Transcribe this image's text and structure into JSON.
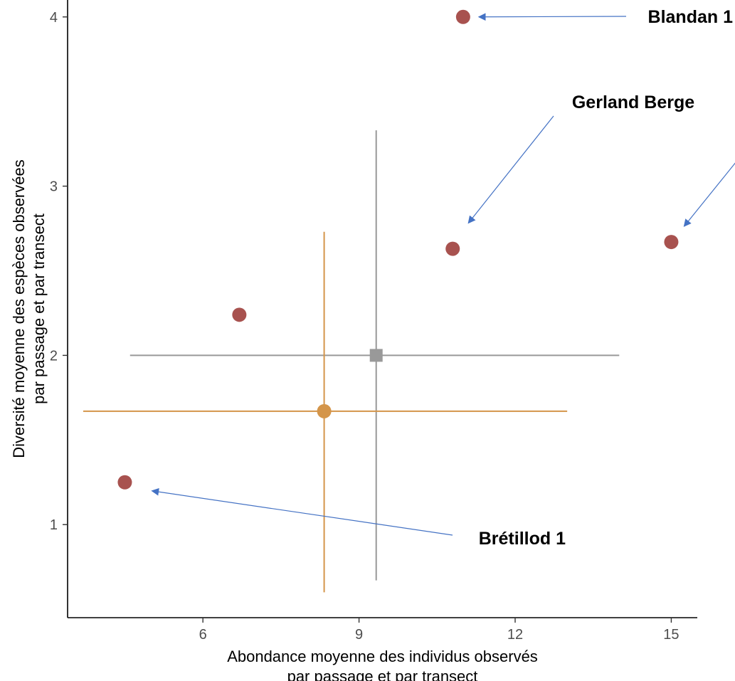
{
  "chart_data": {
    "type": "scatter",
    "xlabel": [
      "Abondance moyenne des individus observés",
      "par passage et par transect"
    ],
    "ylabel": [
      "Diversité moyenne des espèces observées",
      "par passage et par transect"
    ],
    "xlim": [
      3.4,
      15.5
    ],
    "ylim": [
      0.45,
      4.1
    ],
    "x_ticks": [
      6,
      9,
      12,
      15
    ],
    "y_ticks": [
      1,
      2,
      3,
      4
    ],
    "x_tick_labels": [
      "6",
      "9",
      "12",
      "15"
    ],
    "y_tick_labels": [
      "1",
      "2",
      "3",
      "4"
    ],
    "grid": false,
    "series": [
      {
        "color": "#a8524f",
        "marker": "circle",
        "points": [
          {
            "x": 11.0,
            "y": 4.0
          },
          {
            "x": 10.8,
            "y": 2.63
          },
          {
            "x": 15.0,
            "y": 2.67
          },
          {
            "x": 6.7,
            "y": 2.24
          },
          {
            "x": 4.5,
            "y": 1.25
          }
        ]
      },
      {
        "color": "#999999",
        "marker": "square",
        "points": [
          {
            "x": 9.33,
            "y": 2.0,
            "x_err": [
              4.6,
              14.0
            ],
            "y_err": [
              0.67,
              3.33
            ]
          }
        ]
      },
      {
        "color": "#d4954a",
        "marker": "circle",
        "points": [
          {
            "x": 8.33,
            "y": 1.67,
            "x_err": [
              3.7,
              13.0
            ],
            "y_err": [
              0.6,
              2.73
            ]
          }
        ]
      }
    ],
    "annotations": [
      {
        "text": "Blandan 1",
        "target": {
          "x": 11.0,
          "y": 4.0
        }
      },
      {
        "text": "Gerland Berge",
        "target": {
          "x": 10.8,
          "y": 2.63
        }
      },
      {
        "text": "",
        "target": {
          "x": 15.0,
          "y": 2.67
        }
      },
      {
        "text": "Brétillod 1",
        "target": {
          "x": 4.5,
          "y": 1.25
        }
      }
    ],
    "annotation_arrow_color": "#4472c4"
  }
}
